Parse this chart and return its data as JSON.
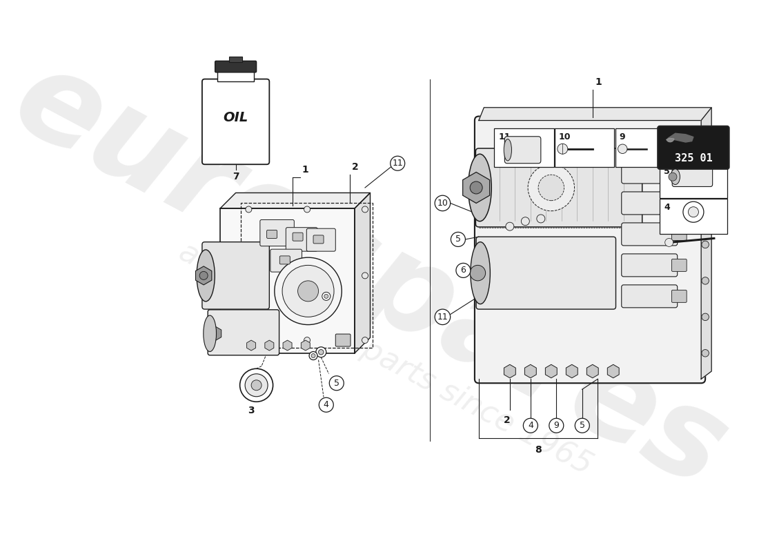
{
  "bg": "#ffffff",
  "lc": "#1a1a1a",
  "gl": "#e8e8e8",
  "gm": "#c8c8c8",
  "gd": "#999999",
  "wm1": "eurospares",
  "wm2": "a passion for parts since 1965",
  "pn": "325 01",
  "wm_color": "#d8d8d8",
  "figw": 11.0,
  "figh": 8.0,
  "dpi": 100
}
